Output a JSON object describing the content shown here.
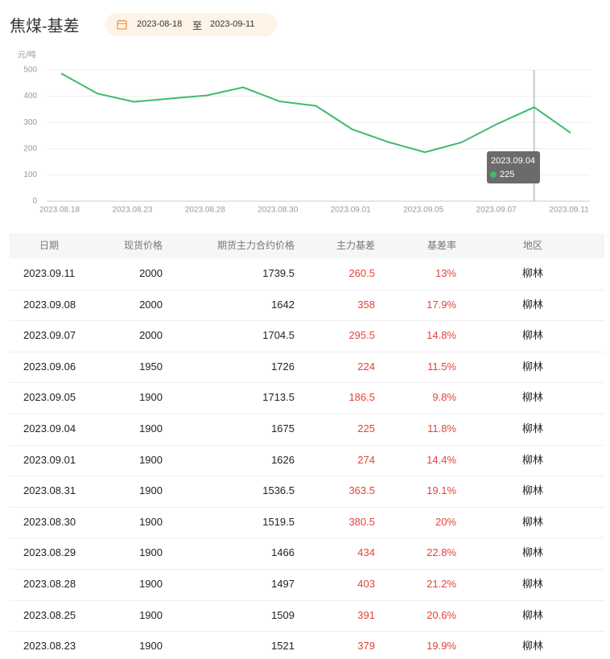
{
  "header": {
    "title": "焦煤-基差",
    "date_start": "2023-08-18",
    "date_sep": "至",
    "date_end": "2023-09-11"
  },
  "chart_data": {
    "type": "line",
    "y_label": "元/吨",
    "categories": [
      "2023.08.18",
      null,
      "2023.08.23",
      null,
      "2023.08.28",
      null,
      "2023.08.30",
      null,
      "2023.09.01",
      null,
      "2023.09.05",
      null,
      "2023.09.07",
      null,
      "2023.09.11"
    ],
    "series": [
      {
        "name": "主力基差",
        "color": "#3dbb6a",
        "values": [
          487,
          410,
          379,
          391,
          403,
          434,
          380.5,
          363.5,
          274,
          225,
          186.5,
          224,
          295.5,
          358,
          260.5
        ]
      }
    ],
    "ylim": [
      0,
      500
    ],
    "yticks": [
      0,
      100,
      200,
      300,
      400,
      500
    ],
    "grid": true,
    "tooltip": {
      "label": "2023.09.04",
      "value": 225
    }
  },
  "table": {
    "columns": [
      "日期",
      "现货价格",
      "期货主力合约价格",
      "主力基差",
      "基差率",
      "地区"
    ],
    "rows": [
      [
        "2023.09.11",
        "2000",
        "1739.5",
        "260.5",
        "13%",
        "柳林"
      ],
      [
        "2023.09.08",
        "2000",
        "1642",
        "358",
        "17.9%",
        "柳林"
      ],
      [
        "2023.09.07",
        "2000",
        "1704.5",
        "295.5",
        "14.8%",
        "柳林"
      ],
      [
        "2023.09.06",
        "1950",
        "1726",
        "224",
        "11.5%",
        "柳林"
      ],
      [
        "2023.09.05",
        "1900",
        "1713.5",
        "186.5",
        "9.8%",
        "柳林"
      ],
      [
        "2023.09.04",
        "1900",
        "1675",
        "225",
        "11.8%",
        "柳林"
      ],
      [
        "2023.09.01",
        "1900",
        "1626",
        "274",
        "14.4%",
        "柳林"
      ],
      [
        "2023.08.31",
        "1900",
        "1536.5",
        "363.5",
        "19.1%",
        "柳林"
      ],
      [
        "2023.08.30",
        "1900",
        "1519.5",
        "380.5",
        "20%",
        "柳林"
      ],
      [
        "2023.08.29",
        "1900",
        "1466",
        "434",
        "22.8%",
        "柳林"
      ],
      [
        "2023.08.28",
        "1900",
        "1497",
        "403",
        "21.2%",
        "柳林"
      ],
      [
        "2023.08.25",
        "1900",
        "1509",
        "391",
        "20.6%",
        "柳林"
      ],
      [
        "2023.08.23",
        "1900",
        "1521",
        "379",
        "19.9%",
        "柳林"
      ]
    ]
  }
}
